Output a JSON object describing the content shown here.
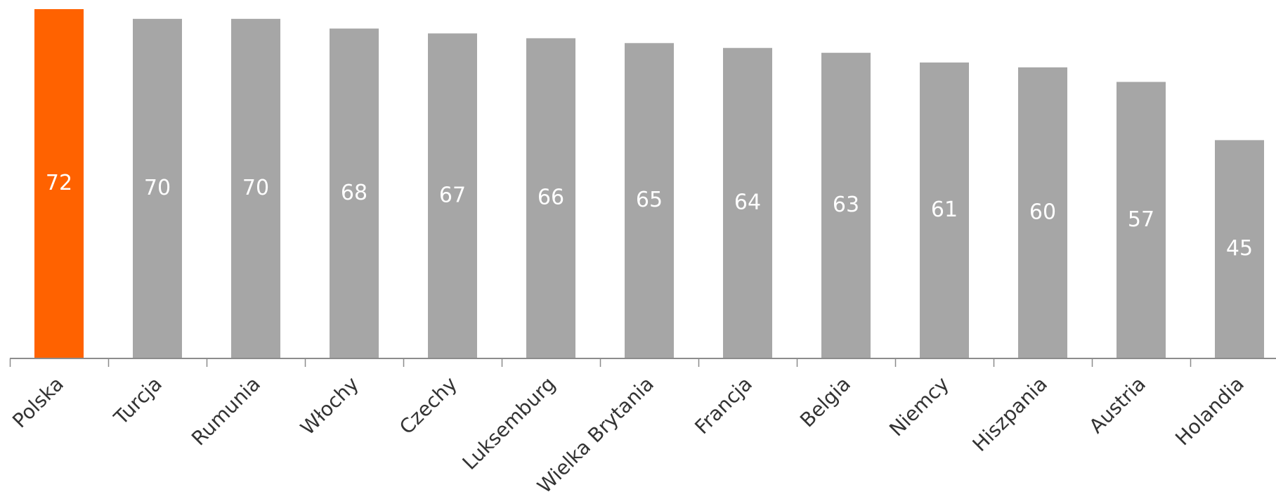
{
  "chart_data": {
    "type": "bar",
    "categories": [
      "Polska",
      "Turcja",
      "Rumunia",
      "Włochy",
      "Czechy",
      "Luksemburg",
      "Wielka Brytania",
      "Francja",
      "Belgia",
      "Niemcy",
      "Hiszpania",
      "Austria",
      "Holandia"
    ],
    "values": [
      72,
      70,
      70,
      68,
      67,
      66,
      65,
      64,
      63,
      61,
      60,
      57,
      45
    ],
    "highlight_index": 0,
    "colors": {
      "highlight": "#ff6200",
      "bar": "#a6a6a6",
      "axis": "#8c8c8c",
      "value_label": "#ffffff",
      "category_label": "#333333"
    },
    "ylim": [
      0,
      72
    ],
    "grid": false,
    "legend": "none",
    "value_labels": "inside-bar"
  }
}
